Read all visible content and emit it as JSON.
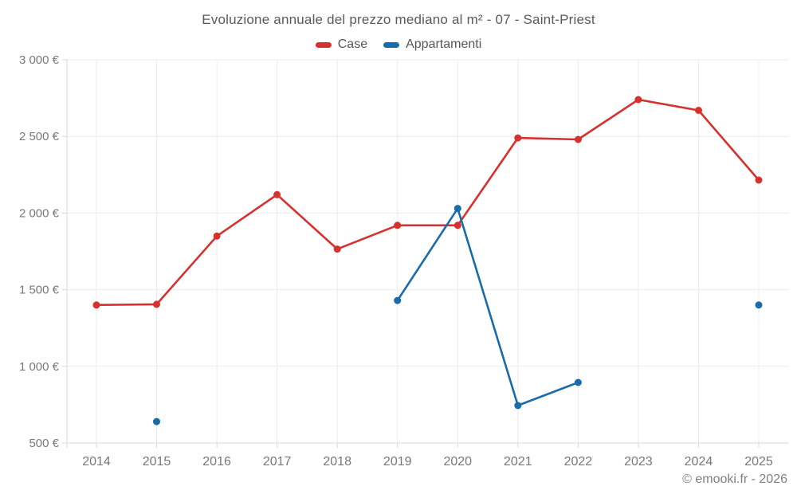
{
  "chart_data": {
    "type": "line",
    "title": "Evoluzione annuale del prezzo mediano al m² - 07 - Saint-Priest",
    "x": [
      "2014",
      "2015",
      "2016",
      "2017",
      "2018",
      "2019",
      "2020",
      "2021",
      "2022",
      "2023",
      "2024",
      "2025"
    ],
    "series": [
      {
        "name": "Case",
        "color": "#d7312e",
        "values": [
          1400,
          1405,
          1850,
          2120,
          1765,
          1920,
          1920,
          2490,
          2480,
          2740,
          2670,
          2215
        ]
      },
      {
        "name": "Appartamenti",
        "color": "#1a6ca8",
        "values": [
          null,
          640,
          null,
          null,
          null,
          1430,
          2030,
          745,
          895,
          null,
          null,
          1400
        ]
      }
    ],
    "ylim": [
      500,
      3000
    ],
    "yticks": [
      500,
      1000,
      1500,
      2000,
      2500,
      3000
    ],
    "ytick_labels": [
      "500 €",
      "1 000 €",
      "1 500 €",
      "2 000 €",
      "2 500 €",
      "3 000 €"
    ],
    "xlabel": "",
    "ylabel": "",
    "grid": true,
    "legend_position": "top",
    "marker": "circle"
  },
  "footer": "© emooki.fr - 2026",
  "colors": {
    "case_red": "#d7312e",
    "appartamenti_blue": "#1a6ca8",
    "grid_line": "#ececec",
    "axis_line": "#d9d9d9",
    "axis_text": "#77787a",
    "title_text": "#595a5c",
    "background": "#ffffff"
  }
}
